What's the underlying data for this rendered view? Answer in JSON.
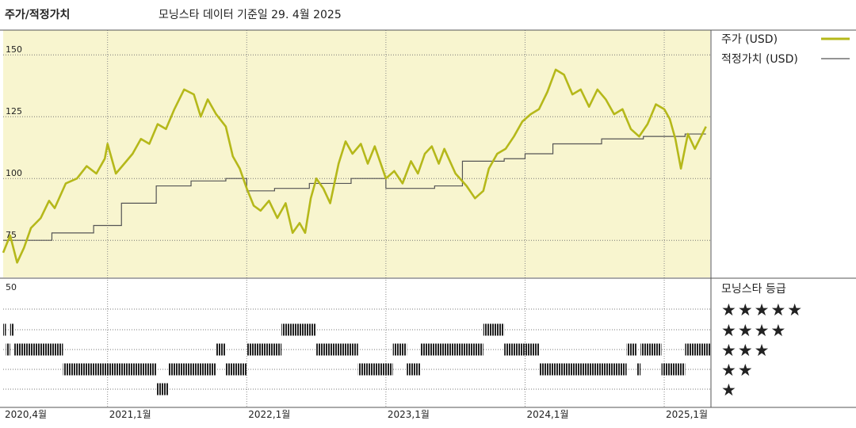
{
  "header": {
    "title": "주가/적정가치",
    "subtitle": "모닝스타 데이터 기준일 29. 4월 2025"
  },
  "legend": {
    "price_label": "주가 (USD)",
    "fair_value_label": "적정가치 (USD)"
  },
  "rating_panel": {
    "title": "모닝스타 등급",
    "star_labels": [
      "★★★★★",
      "★★★★",
      "★★★",
      "★★",
      "★"
    ]
  },
  "colors": {
    "price": "#b5b81a",
    "fair_value": "#555555",
    "plot_bg": "#f8f5cf",
    "rating_bar": "#222222"
  },
  "chart_data": [
    {
      "type": "line",
      "title": "주가/적정가치",
      "x_axis": {
        "ticks": [
          "2020,4월",
          "2021,1월",
          "2022,1월",
          "2023,1월",
          "2024,1월",
          "2025,1월"
        ],
        "tick_values": [
          2020.25,
          2021.0,
          2022.0,
          2023.0,
          2024.0,
          2025.0
        ],
        "range": [
          2020.25,
          2025.33
        ]
      },
      "ylim": [
        60,
        160
      ],
      "y_ticks": [
        75,
        100,
        125,
        150
      ],
      "series": [
        {
          "name": "주가 (USD)",
          "points": [
            [
              2020.25,
              70
            ],
            [
              2020.3,
              77
            ],
            [
              2020.35,
              66
            ],
            [
              2020.4,
              72
            ],
            [
              2020.45,
              80
            ],
            [
              2020.52,
              84
            ],
            [
              2020.58,
              91
            ],
            [
              2020.62,
              88
            ],
            [
              2020.7,
              98
            ],
            [
              2020.78,
              100
            ],
            [
              2020.85,
              105
            ],
            [
              2020.92,
              102
            ],
            [
              2020.98,
              108
            ],
            [
              2021.0,
              114
            ],
            [
              2021.06,
              102
            ],
            [
              2021.12,
              106
            ],
            [
              2021.18,
              110
            ],
            [
              2021.24,
              116
            ],
            [
              2021.3,
              114
            ],
            [
              2021.36,
              122
            ],
            [
              2021.42,
              120
            ],
            [
              2021.48,
              128
            ],
            [
              2021.55,
              136
            ],
            [
              2021.62,
              134
            ],
            [
              2021.67,
              125
            ],
            [
              2021.72,
              132
            ],
            [
              2021.78,
              126
            ],
            [
              2021.85,
              121
            ],
            [
              2021.9,
              109
            ],
            [
              2021.95,
              104
            ],
            [
              2022.0,
              96
            ],
            [
              2022.05,
              89
            ],
            [
              2022.1,
              87
            ],
            [
              2022.16,
              91
            ],
            [
              2022.22,
              84
            ],
            [
              2022.28,
              90
            ],
            [
              2022.33,
              78
            ],
            [
              2022.38,
              82
            ],
            [
              2022.42,
              78
            ],
            [
              2022.46,
              92
            ],
            [
              2022.5,
              100
            ],
            [
              2022.55,
              96
            ],
            [
              2022.6,
              90
            ],
            [
              2022.66,
              106
            ],
            [
              2022.71,
              115
            ],
            [
              2022.76,
              110
            ],
            [
              2022.82,
              114
            ],
            [
              2022.87,
              106
            ],
            [
              2022.92,
              113
            ],
            [
              2023.0,
              100
            ],
            [
              2023.06,
              103
            ],
            [
              2023.12,
              98
            ],
            [
              2023.18,
              107
            ],
            [
              2023.23,
              102
            ],
            [
              2023.28,
              110
            ],
            [
              2023.33,
              113
            ],
            [
              2023.38,
              106
            ],
            [
              2023.42,
              112
            ],
            [
              2023.5,
              102
            ],
            [
              2023.58,
              97
            ],
            [
              2023.64,
              92
            ],
            [
              2023.7,
              95
            ],
            [
              2023.74,
              104
            ],
            [
              2023.8,
              110
            ],
            [
              2023.86,
              112
            ],
            [
              2023.92,
              117
            ],
            [
              2023.98,
              123
            ],
            [
              2024.04,
              126
            ],
            [
              2024.1,
              128
            ],
            [
              2024.16,
              135
            ],
            [
              2024.22,
              144
            ],
            [
              2024.28,
              142
            ],
            [
              2024.34,
              134
            ],
            [
              2024.4,
              136
            ],
            [
              2024.46,
              129
            ],
            [
              2024.52,
              136
            ],
            [
              2024.58,
              132
            ],
            [
              2024.64,
              126
            ],
            [
              2024.7,
              128
            ],
            [
              2024.76,
              120
            ],
            [
              2024.82,
              117
            ],
            [
              2024.88,
              122
            ],
            [
              2024.94,
              130
            ],
            [
              2025.0,
              128
            ],
            [
              2025.04,
              124
            ],
            [
              2025.08,
              116
            ],
            [
              2025.12,
              104
            ],
            [
              2025.17,
              118
            ],
            [
              2025.22,
              112
            ],
            [
              2025.3,
              121
            ]
          ]
        },
        {
          "name": "적정가치 (USD)",
          "step": true,
          "points": [
            [
              2020.25,
              75
            ],
            [
              2020.6,
              78
            ],
            [
              2020.9,
              81
            ],
            [
              2021.1,
              90
            ],
            [
              2021.35,
              97
            ],
            [
              2021.6,
              99
            ],
            [
              2021.85,
              100
            ],
            [
              2022.0,
              95
            ],
            [
              2022.2,
              96
            ],
            [
              2022.45,
              98
            ],
            [
              2022.75,
              100
            ],
            [
              2023.0,
              96
            ],
            [
              2023.35,
              97
            ],
            [
              2023.55,
              107
            ],
            [
              2023.85,
              108
            ],
            [
              2024.0,
              110
            ],
            [
              2024.2,
              114
            ],
            [
              2024.55,
              116
            ],
            [
              2024.85,
              117
            ],
            [
              2025.15,
              118
            ],
            [
              2025.3,
              118
            ]
          ]
        }
      ]
    },
    {
      "type": "heatmap",
      "title": "모닝스타 등급",
      "ylabel_tick": "50",
      "rating_levels": [
        5,
        4,
        3,
        2,
        1
      ],
      "periods": [
        {
          "start": 2020.25,
          "end": 2020.27,
          "rating": 4
        },
        {
          "start": 2020.27,
          "end": 2020.3,
          "rating": 3
        },
        {
          "start": 2020.3,
          "end": 2020.33,
          "rating": 4
        },
        {
          "start": 2020.33,
          "end": 2020.68,
          "rating": 3
        },
        {
          "start": 2020.68,
          "end": 2021.35,
          "rating": 2
        },
        {
          "start": 2021.35,
          "end": 2021.44,
          "rating": 1
        },
        {
          "start": 2021.44,
          "end": 2021.78,
          "rating": 2
        },
        {
          "start": 2021.78,
          "end": 2021.85,
          "rating": 3
        },
        {
          "start": 2021.85,
          "end": 2022.0,
          "rating": 2
        },
        {
          "start": 2022.0,
          "end": 2022.25,
          "rating": 3
        },
        {
          "start": 2022.25,
          "end": 2022.5,
          "rating": 4
        },
        {
          "start": 2022.5,
          "end": 2022.8,
          "rating": 3
        },
        {
          "start": 2022.8,
          "end": 2023.05,
          "rating": 2
        },
        {
          "start": 2023.05,
          "end": 2023.15,
          "rating": 3
        },
        {
          "start": 2023.15,
          "end": 2023.25,
          "rating": 2
        },
        {
          "start": 2023.25,
          "end": 2023.7,
          "rating": 3
        },
        {
          "start": 2023.7,
          "end": 2023.85,
          "rating": 4
        },
        {
          "start": 2023.85,
          "end": 2024.1,
          "rating": 3
        },
        {
          "start": 2024.1,
          "end": 2024.73,
          "rating": 2
        },
        {
          "start": 2024.73,
          "end": 2024.8,
          "rating": 3
        },
        {
          "start": 2024.8,
          "end": 2024.83,
          "rating": 2
        },
        {
          "start": 2024.83,
          "end": 2024.98,
          "rating": 3
        },
        {
          "start": 2024.98,
          "end": 2025.15,
          "rating": 2
        },
        {
          "start": 2025.15,
          "end": 2025.33,
          "rating": 3
        }
      ]
    }
  ]
}
